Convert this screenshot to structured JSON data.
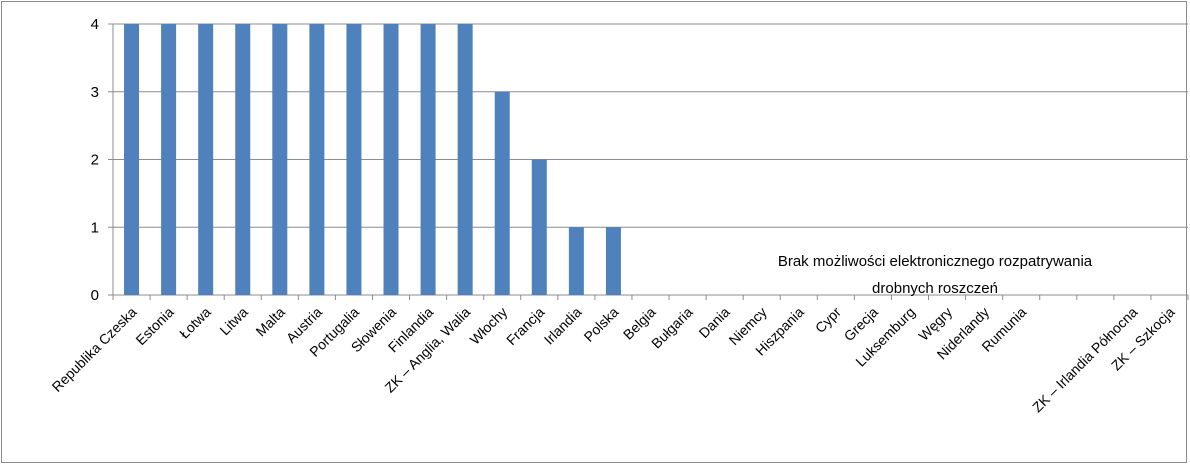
{
  "chart_data": {
    "type": "bar",
    "categories": [
      "Republika Czeska",
      "Estonia",
      "Łotwa",
      "Litwa",
      "Malta",
      "Austria",
      "Portugalia",
      "Słowenia",
      "Finlandia",
      "ZK – Anglia, Walia",
      "Włochy",
      "Francja",
      "Irlandia",
      "Polska",
      "Belgia",
      "Bułgaria",
      "Dania",
      "Niemcy",
      "Hiszpania",
      "Cypr",
      "Grecja",
      "Luksemburg",
      "Węgry",
      "Niderlandy",
      "Rumunia",
      "",
      "",
      "ZK – Irlandia Północna",
      "ZK – Szkocja"
    ],
    "values": [
      4,
      4,
      4,
      4,
      4,
      4,
      4,
      4,
      4,
      4,
      3,
      2,
      1,
      1,
      0,
      0,
      0,
      0,
      0,
      0,
      0,
      0,
      0,
      0,
      0,
      0,
      0,
      0,
      0
    ],
    "ylim": [
      0,
      4
    ],
    "yticks": [
      "0",
      "1",
      "2",
      "3",
      "4"
    ],
    "bar_color": "#4f81bd",
    "grid": true,
    "annotation": [
      "Brak możliwości elektronicznego rozpatrywania",
      "drobnych roszczeń"
    ]
  }
}
